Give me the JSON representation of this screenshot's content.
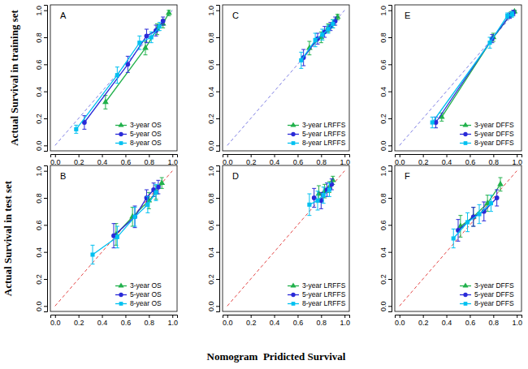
{
  "chart_data": [
    {
      "type": "scatter",
      "title": "A",
      "xlim": [
        -0.04,
        1.04
      ],
      "ylim": [
        -0.04,
        1.04
      ],
      "xticks": [
        {
          "value": 0,
          "label": "0.0"
        },
        {
          "value": 0.2,
          "label": "0.2"
        },
        {
          "value": 0.4,
          "label": "0.4"
        },
        {
          "value": 0.6,
          "label": "0.6"
        },
        {
          "value": 0.8,
          "label": "0.8"
        },
        {
          "value": 1,
          "label": "1.0"
        }
      ],
      "yticks": [
        {
          "value": 0,
          "label": "0.0"
        },
        {
          "value": 0.2,
          "label": "0.2"
        },
        {
          "value": 0.4,
          "label": "0.4"
        },
        {
          "value": 0.6,
          "label": "0.6"
        },
        {
          "value": 0.8,
          "label": "0.8"
        },
        {
          "value": 1,
          "label": "1.0"
        }
      ],
      "legend": "bottom-right",
      "series": [
        {
          "name": "3-year OS",
          "color": "#22b14c",
          "marker": "triangle",
          "line_style": "solid",
          "x": [
            0.43,
            0.77,
            0.87,
            0.92,
            0.97
          ],
          "values": [
            0.32,
            0.72,
            0.86,
            0.9,
            0.98
          ],
          "errors": [
            0.05,
            0.05,
            0.04,
            0.03,
            0.02
          ]
        },
        {
          "name": "5-year OS",
          "color": "#2a2ad8",
          "marker": "circle",
          "line_style": "solid",
          "x": [
            0.25,
            0.62,
            0.78,
            0.86,
            0.92
          ],
          "values": [
            0.17,
            0.6,
            0.81,
            0.85,
            0.92
          ],
          "errors": [
            0.05,
            0.06,
            0.05,
            0.04,
            0.03
          ]
        },
        {
          "name": "8-year OS",
          "color": "#00c0f0",
          "marker": "square",
          "line_style": "solid",
          "x": [
            0.18,
            0.53,
            0.72,
            0.82,
            0.89
          ],
          "values": [
            0.12,
            0.52,
            0.76,
            0.8,
            0.88
          ],
          "errors": [
            0.03,
            0.06,
            0.05,
            0.04,
            0.03
          ]
        }
      ]
    },
    {
      "type": "scatter",
      "title": "C",
      "xlim": [
        -0.04,
        1.04
      ],
      "ylim": [
        -0.04,
        1.04
      ],
      "xticks": [
        {
          "value": 0,
          "label": "0.0"
        },
        {
          "value": 0.2,
          "label": "0.2"
        },
        {
          "value": 0.4,
          "label": "0.4"
        },
        {
          "value": 0.6,
          "label": "0.6"
        },
        {
          "value": 0.8,
          "label": "0.8"
        },
        {
          "value": 1,
          "label": "1.0"
        }
      ],
      "yticks": [
        {
          "value": 0,
          "label": "0.0"
        },
        {
          "value": 0.2,
          "label": "0.2"
        },
        {
          "value": 0.4,
          "label": "0.4"
        },
        {
          "value": 0.6,
          "label": "0.6"
        },
        {
          "value": 0.8,
          "label": "0.8"
        },
        {
          "value": 1,
          "label": "1.0"
        }
      ],
      "legend": "bottom-right",
      "series": [
        {
          "name": "3-year LRFFS",
          "color": "#22b14c",
          "marker": "triangle",
          "line_style": "solid",
          "x": [
            0.7,
            0.8,
            0.86,
            0.9,
            0.94
          ],
          "values": [
            0.72,
            0.8,
            0.87,
            0.9,
            0.95
          ],
          "errors": [
            0.05,
            0.04,
            0.03,
            0.03,
            0.02
          ]
        },
        {
          "name": "5-year LRFFS",
          "color": "#2a2ad8",
          "marker": "circle",
          "line_style": "solid",
          "x": [
            0.65,
            0.77,
            0.83,
            0.88,
            0.92
          ],
          "values": [
            0.65,
            0.79,
            0.84,
            0.88,
            0.92
          ],
          "errors": [
            0.06,
            0.04,
            0.04,
            0.03,
            0.03
          ]
        },
        {
          "name": "8-year LRFFS",
          "color": "#00c0f0",
          "marker": "square",
          "line_style": "solid",
          "x": [
            0.63,
            0.75,
            0.81,
            0.86,
            0.9
          ],
          "values": [
            0.63,
            0.78,
            0.82,
            0.86,
            0.9
          ],
          "errors": [
            0.06,
            0.05,
            0.04,
            0.03,
            0.03
          ]
        }
      ]
    },
    {
      "type": "scatter",
      "title": "E",
      "xlim": [
        -0.04,
        1.04
      ],
      "ylim": [
        -0.04,
        1.04
      ],
      "xticks": [
        {
          "value": 0,
          "label": "0.0"
        },
        {
          "value": 0.2,
          "label": "0.2"
        },
        {
          "value": 0.4,
          "label": "0.4"
        },
        {
          "value": 0.6,
          "label": "0.6"
        },
        {
          "value": 0.8,
          "label": "0.8"
        },
        {
          "value": 1,
          "label": "1.0"
        }
      ],
      "yticks": [
        {
          "value": 0,
          "label": "0.0"
        },
        {
          "value": 0.2,
          "label": "0.2"
        },
        {
          "value": 0.4,
          "label": "0.4"
        },
        {
          "value": 0.6,
          "label": "0.6"
        },
        {
          "value": 0.8,
          "label": "0.8"
        },
        {
          "value": 1,
          "label": "1.0"
        }
      ],
      "legend": "bottom-right",
      "series": [
        {
          "name": "3-year DFFS",
          "color": "#22b14c",
          "marker": "triangle",
          "line_style": "solid",
          "x": [
            0.36,
            0.8,
            0.95,
            0.98
          ],
          "values": [
            0.21,
            0.8,
            0.97,
            0.99
          ],
          "errors": [
            0.03,
            0.03,
            0.02,
            0.01
          ]
        },
        {
          "name": "5-year DFFS",
          "color": "#2a2ad8",
          "marker": "circle",
          "line_style": "solid",
          "x": [
            0.31,
            0.79,
            0.94,
            0.97
          ],
          "values": [
            0.17,
            0.79,
            0.96,
            0.98
          ],
          "errors": [
            0.04,
            0.03,
            0.02,
            0.02
          ]
        },
        {
          "name": "8-year DFFS",
          "color": "#00c0f0",
          "marker": "square",
          "line_style": "solid",
          "x": [
            0.28,
            0.77,
            0.92,
            0.96
          ],
          "values": [
            0.17,
            0.76,
            0.96,
            0.97
          ],
          "errors": [
            0.04,
            0.04,
            0.02,
            0.02
          ]
        }
      ]
    },
    {
      "type": "scatter",
      "title": "B",
      "xlim": [
        -0.04,
        1.04
      ],
      "ylim": [
        -0.04,
        1.04
      ],
      "xticks": [
        {
          "value": 0,
          "label": "0.0"
        },
        {
          "value": 0.2,
          "label": "0.2"
        },
        {
          "value": 0.4,
          "label": "0.4"
        },
        {
          "value": 0.6,
          "label": "0.6"
        },
        {
          "value": 0.8,
          "label": "0.8"
        },
        {
          "value": 1,
          "label": "1.0"
        }
      ],
      "yticks": [
        {
          "value": 0,
          "label": "0.0"
        },
        {
          "value": 0.2,
          "label": "0.2"
        },
        {
          "value": 0.4,
          "label": "0.4"
        },
        {
          "value": 0.6,
          "label": "0.6"
        },
        {
          "value": 0.8,
          "label": "0.8"
        },
        {
          "value": 1,
          "label": "1.0"
        }
      ],
      "legend": "bottom-right",
      "series": [
        {
          "name": "3-year OS",
          "color": "#22b14c",
          "marker": "triangle",
          "line_style": "solid",
          "x": [
            0.52,
            0.66,
            0.8,
            0.86,
            0.91
          ],
          "values": [
            0.53,
            0.66,
            0.78,
            0.84,
            0.91
          ],
          "errors": [
            0.08,
            0.07,
            0.06,
            0.05,
            0.04
          ]
        },
        {
          "name": "5-year OS",
          "color": "#2a2ad8",
          "marker": "circle",
          "line_style": "solid",
          "x": [
            0.5,
            0.68,
            0.78,
            0.84,
            0.88
          ],
          "values": [
            0.52,
            0.66,
            0.8,
            0.86,
            0.88
          ],
          "errors": [
            0.09,
            0.08,
            0.06,
            0.05,
            0.05
          ]
        },
        {
          "name": "8-year OS",
          "color": "#00c0f0",
          "marker": "square",
          "line_style": "solid",
          "x": [
            0.32,
            0.53,
            0.68,
            0.79,
            0.86
          ],
          "values": [
            0.38,
            0.51,
            0.66,
            0.75,
            0.84
          ],
          "errors": [
            0.07,
            0.08,
            0.07,
            0.06,
            0.06
          ]
        }
      ]
    },
    {
      "type": "scatter",
      "title": "D",
      "xlim": [
        -0.04,
        1.04
      ],
      "ylim": [
        -0.04,
        1.04
      ],
      "xticks": [
        {
          "value": 0,
          "label": "0.0"
        },
        {
          "value": 0.2,
          "label": "0.2"
        },
        {
          "value": 0.4,
          "label": "0.4"
        },
        {
          "value": 0.6,
          "label": "0.6"
        },
        {
          "value": 0.8,
          "label": "0.8"
        },
        {
          "value": 1,
          "label": "1.0"
        }
      ],
      "yticks": [
        {
          "value": 0,
          "label": "0.0"
        },
        {
          "value": 0.2,
          "label": "0.2"
        },
        {
          "value": 0.4,
          "label": "0.4"
        },
        {
          "value": 0.6,
          "label": "0.6"
        },
        {
          "value": 0.8,
          "label": "0.8"
        },
        {
          "value": 1,
          "label": "1.0"
        }
      ],
      "legend": "bottom-right",
      "series": [
        {
          "name": "3-year LRFFS",
          "color": "#22b14c",
          "marker": "triangle",
          "line_style": "solid",
          "x": [
            0.78,
            0.83,
            0.87,
            0.9
          ],
          "values": [
            0.83,
            0.85,
            0.88,
            0.93
          ],
          "errors": [
            0.06,
            0.05,
            0.04,
            0.03
          ]
        },
        {
          "name": "5-year LRFFS",
          "color": "#2a2ad8",
          "marker": "circle",
          "line_style": "solid",
          "x": [
            0.74,
            0.8,
            0.85,
            0.89
          ],
          "values": [
            0.8,
            0.78,
            0.86,
            0.9
          ],
          "errors": [
            0.07,
            0.06,
            0.05,
            0.04
          ]
        },
        {
          "name": "8-year LRFFS",
          "color": "#00c0f0",
          "marker": "square",
          "line_style": "solid",
          "x": [
            0.7,
            0.77,
            0.82,
            0.87
          ],
          "values": [
            0.75,
            0.78,
            0.82,
            0.86
          ],
          "errors": [
            0.08,
            0.07,
            0.06,
            0.05
          ]
        }
      ]
    },
    {
      "type": "scatter",
      "title": "F",
      "xlim": [
        -0.04,
        1.04
      ],
      "ylim": [
        -0.04,
        1.04
      ],
      "xticks": [
        {
          "value": 0,
          "label": "0.0"
        },
        {
          "value": 0.2,
          "label": "0.2"
        },
        {
          "value": 0.4,
          "label": "0.4"
        },
        {
          "value": 0.6,
          "label": "0.6"
        },
        {
          "value": 0.8,
          "label": "0.8"
        },
        {
          "value": 1,
          "label": "1.0"
        }
      ],
      "yticks": [
        {
          "value": 0,
          "label": "0.0"
        },
        {
          "value": 0.2,
          "label": "0.2"
        },
        {
          "value": 0.4,
          "label": "0.4"
        },
        {
          "value": 0.6,
          "label": "0.6"
        },
        {
          "value": 0.8,
          "label": "0.8"
        },
        {
          "value": 1,
          "label": "1.0"
        }
      ],
      "legend": "bottom-right",
      "series": [
        {
          "name": "3-year DFFS",
          "color": "#22b14c",
          "marker": "triangle",
          "line_style": "solid",
          "x": [
            0.52,
            0.63,
            0.75,
            0.86
          ],
          "values": [
            0.59,
            0.66,
            0.76,
            0.9
          ],
          "errors": [
            0.08,
            0.07,
            0.06,
            0.05
          ]
        },
        {
          "name": "5-year DFFS",
          "color": "#2a2ad8",
          "marker": "circle",
          "line_style": "solid",
          "x": [
            0.5,
            0.63,
            0.72,
            0.83
          ],
          "values": [
            0.56,
            0.66,
            0.7,
            0.8
          ],
          "errors": [
            0.08,
            0.07,
            0.07,
            0.06
          ]
        },
        {
          "name": "8-year DFFS",
          "color": "#00c0f0",
          "marker": "square",
          "line_style": "solid",
          "x": [
            0.46,
            0.58,
            0.68,
            0.78
          ],
          "values": [
            0.5,
            0.62,
            0.68,
            0.76
          ],
          "errors": [
            0.07,
            0.07,
            0.07,
            0.06
          ]
        }
      ]
    }
  ],
  "y_labels": [
    "Actual Survival in training set",
    "Actual Survival in test set"
  ],
  "x_label": "Nomogram  Pridicted Survival"
}
